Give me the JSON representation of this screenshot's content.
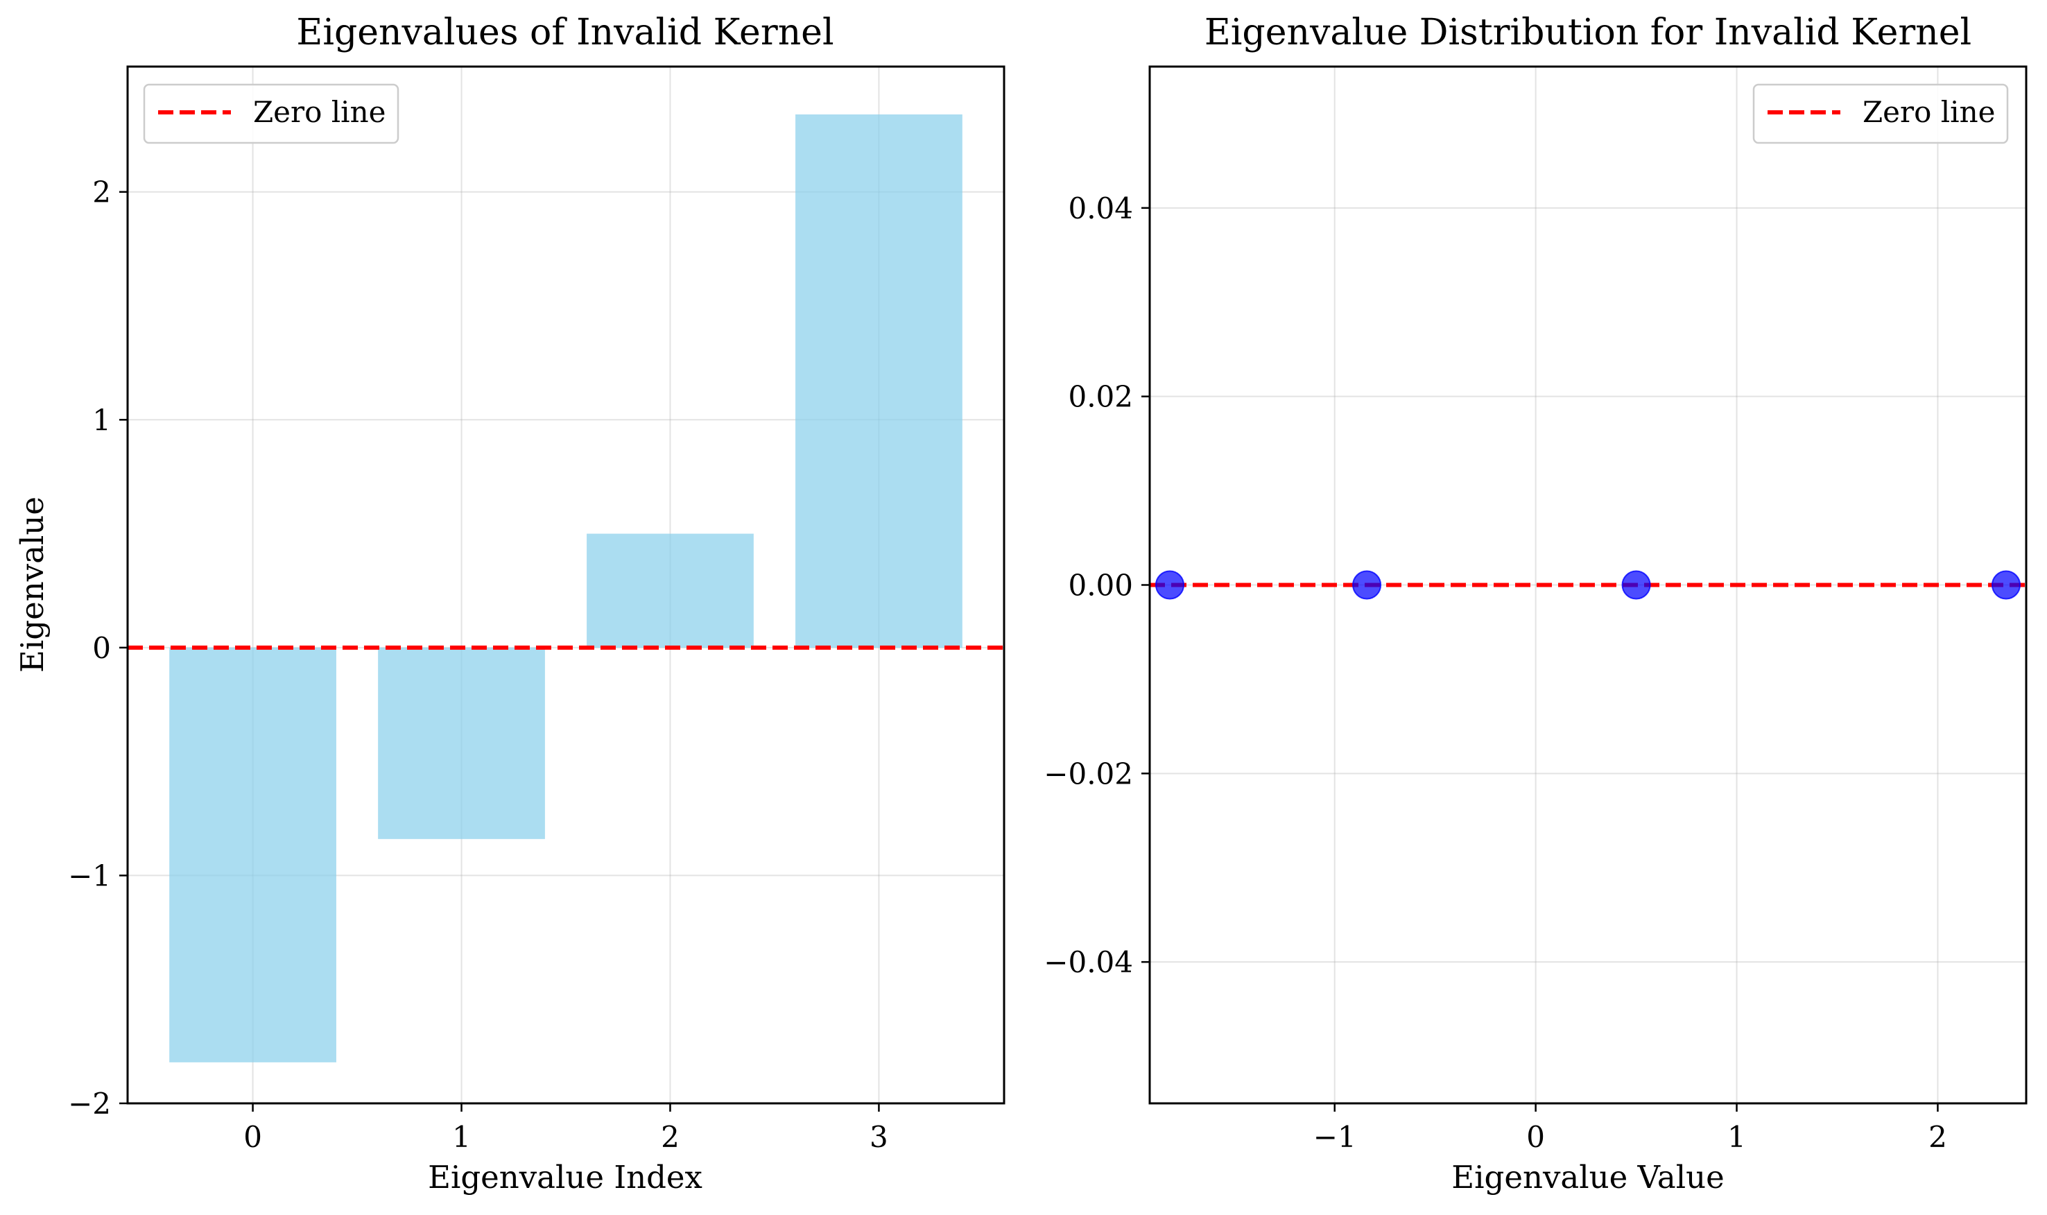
{
  "chart_data": [
    {
      "type": "bar",
      "title": "Eigenvalues of Invalid Kernel",
      "xlabel": "Eigenvalue Index",
      "ylabel": "Eigenvalue",
      "categories": [
        "0",
        "1",
        "2",
        "3"
      ],
      "values": [
        -1.82,
        -0.84,
        0.5,
        2.34
      ],
      "xlim": [
        -0.6,
        3.6
      ],
      "ylim": [
        -2.0,
        2.55
      ],
      "xticks": [
        "0",
        "1",
        "2",
        "3"
      ],
      "yticks": [
        "−2",
        "−1",
        "0",
        "1",
        "2"
      ],
      "grid": true,
      "bar_color": "#87ceeb",
      "reference_line": {
        "label": "Zero line",
        "y": 0,
        "color": "#ff0000",
        "style": "dashed"
      },
      "legend": {
        "position": "upper-left",
        "entries": [
          "Zero line"
        ]
      }
    },
    {
      "type": "scatter",
      "title": "Eigenvalue Distribution for Invalid Kernel",
      "xlabel": "Eigenvalue Value",
      "ylabel": "",
      "x": [
        -1.82,
        -0.84,
        0.5,
        2.34
      ],
      "y": [
        0,
        0,
        0,
        0
      ],
      "xlim": [
        -1.92,
        2.44
      ],
      "ylim": [
        -0.055,
        0.055
      ],
      "xticks": [
        "−1",
        "0",
        "1",
        "2"
      ],
      "yticks": [
        "−0.04",
        "−0.02",
        "0.00",
        "0.02",
        "0.04"
      ],
      "grid": true,
      "marker_color": "#0000ff",
      "reference_line": {
        "label": "Zero line",
        "y": 0,
        "color": "#ff0000",
        "style": "dashed"
      },
      "legend": {
        "position": "upper-right",
        "entries": [
          "Zero line"
        ]
      }
    }
  ]
}
